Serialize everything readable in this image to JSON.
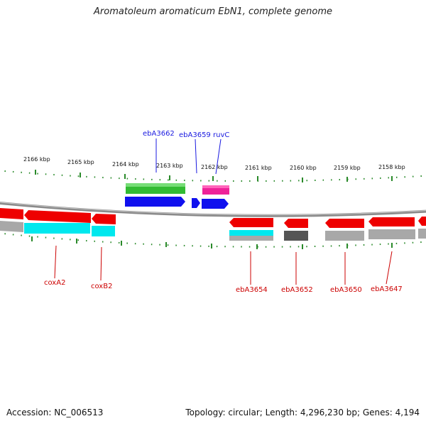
{
  "title": "Aromatoleum aromaticum EbN1, complete genome",
  "footer": {
    "accession": "Accession: NC_006513",
    "summary": "Topology: circular; Length: 4,296,230 bp; Genes: 4,194"
  },
  "colors": {
    "backbone": "#8a8a8a",
    "tick": "#2a8a2a",
    "label_top": "#1a1ae0",
    "label_bottom": "#cc0000",
    "red_gene": "#ee0000",
    "cyan_gene": "#00e8ee",
    "gray_gene": "#a8a8a8",
    "dark_gene": "#555555",
    "blue_gene": "#1010ee",
    "green_gene": "#33bb33",
    "magenta_gene": "#ee2299"
  },
  "scale_labels": [
    "2166 kbp",
    "2165 kbp",
    "2164 kbp",
    "2163 kbp",
    "2162 kbp",
    "2161 kbp",
    "2160 kbp",
    "2159 kbp",
    "2158 kbp"
  ],
  "gene_labels_top": [
    "ebA3662",
    "ebA3659",
    "ruvC"
  ],
  "gene_labels_bottom": [
    "coxA2",
    "coxB2",
    "ebA3654",
    "ebA3652",
    "ebA3650",
    "ebA3647"
  ]
}
